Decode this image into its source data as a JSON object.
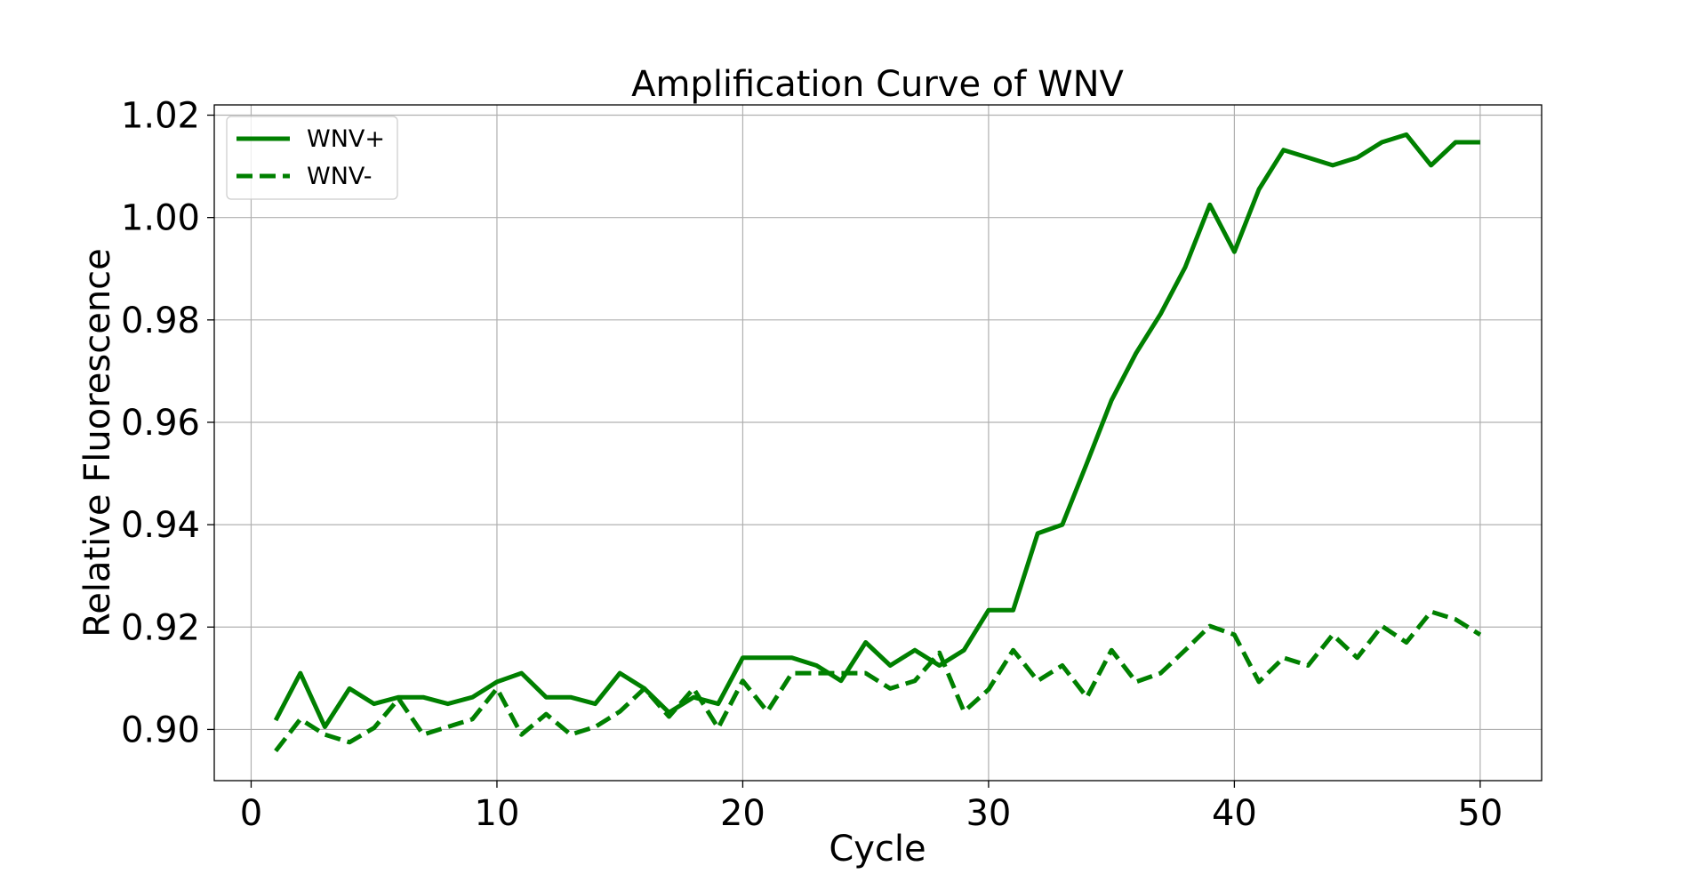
{
  "chart_data": {
    "type": "line",
    "title": "Amplification Curve of WNV",
    "xlabel": "Cycle",
    "ylabel": "Relative Fluorescence",
    "xlim": [
      -1.5,
      52.5
    ],
    "ylim": [
      0.89,
      1.022
    ],
    "xticks": [
      0,
      10,
      20,
      30,
      40,
      50
    ],
    "xtick_labels": [
      "0",
      "10",
      "20",
      "30",
      "40",
      "50"
    ],
    "yticks": [
      0.9,
      0.92,
      0.94,
      0.96,
      0.98,
      1.0,
      1.02
    ],
    "ytick_labels": [
      "0.90",
      "0.92",
      "0.94",
      "0.96",
      "0.98",
      "1.00",
      "1.02"
    ],
    "grid": true,
    "legend_position": "top-left",
    "color": "#008000",
    "x": [
      1,
      2,
      3,
      4,
      5,
      6,
      7,
      8,
      9,
      10,
      11,
      12,
      13,
      14,
      15,
      16,
      17,
      18,
      19,
      20,
      21,
      22,
      23,
      24,
      25,
      26,
      27,
      28,
      29,
      30,
      31,
      32,
      33,
      34,
      35,
      36,
      37,
      38,
      39,
      40,
      41,
      42,
      43,
      44,
      45,
      46,
      47,
      48,
      49,
      50
    ],
    "series": [
      {
        "name": "WNV+",
        "style": "solid",
        "values": [
          0.9018,
          0.911,
          0.9005,
          0.908,
          0.905,
          0.9063,
          0.9063,
          0.905,
          0.9063,
          0.9093,
          0.911,
          0.9063,
          0.9063,
          0.905,
          0.911,
          0.908,
          0.9033,
          0.9063,
          0.905,
          0.914,
          0.914,
          0.914,
          0.9125,
          0.9095,
          0.917,
          0.9125,
          0.9155,
          0.9125,
          0.9155,
          0.9233,
          0.9233,
          0.9383,
          0.94,
          0.952,
          0.9643,
          0.9735,
          0.9812,
          0.9903,
          1.0025,
          0.9933,
          1.0055,
          1.0132,
          1.0117,
          1.0102,
          1.0117,
          1.0147,
          1.0162,
          1.0102,
          1.0147,
          1.0147
        ]
      },
      {
        "name": "WNV-",
        "style": "dashed",
        "values": [
          0.8958,
          0.902,
          0.899,
          0.8975,
          0.9003,
          0.906,
          0.899,
          0.9005,
          0.902,
          0.908,
          0.899,
          0.903,
          0.899,
          0.9005,
          0.9035,
          0.908,
          0.9025,
          0.908,
          0.9003,
          0.9095,
          0.9035,
          0.911,
          0.911,
          0.911,
          0.911,
          0.908,
          0.9095,
          0.915,
          0.9035,
          0.9078,
          0.9155,
          0.9095,
          0.9125,
          0.9063,
          0.9155,
          0.9093,
          0.911,
          0.9155,
          0.9202,
          0.9185,
          0.9093,
          0.914,
          0.9125,
          0.9185,
          0.914,
          0.9202,
          0.917,
          0.923,
          0.9215,
          0.9185
        ]
      }
    ]
  }
}
